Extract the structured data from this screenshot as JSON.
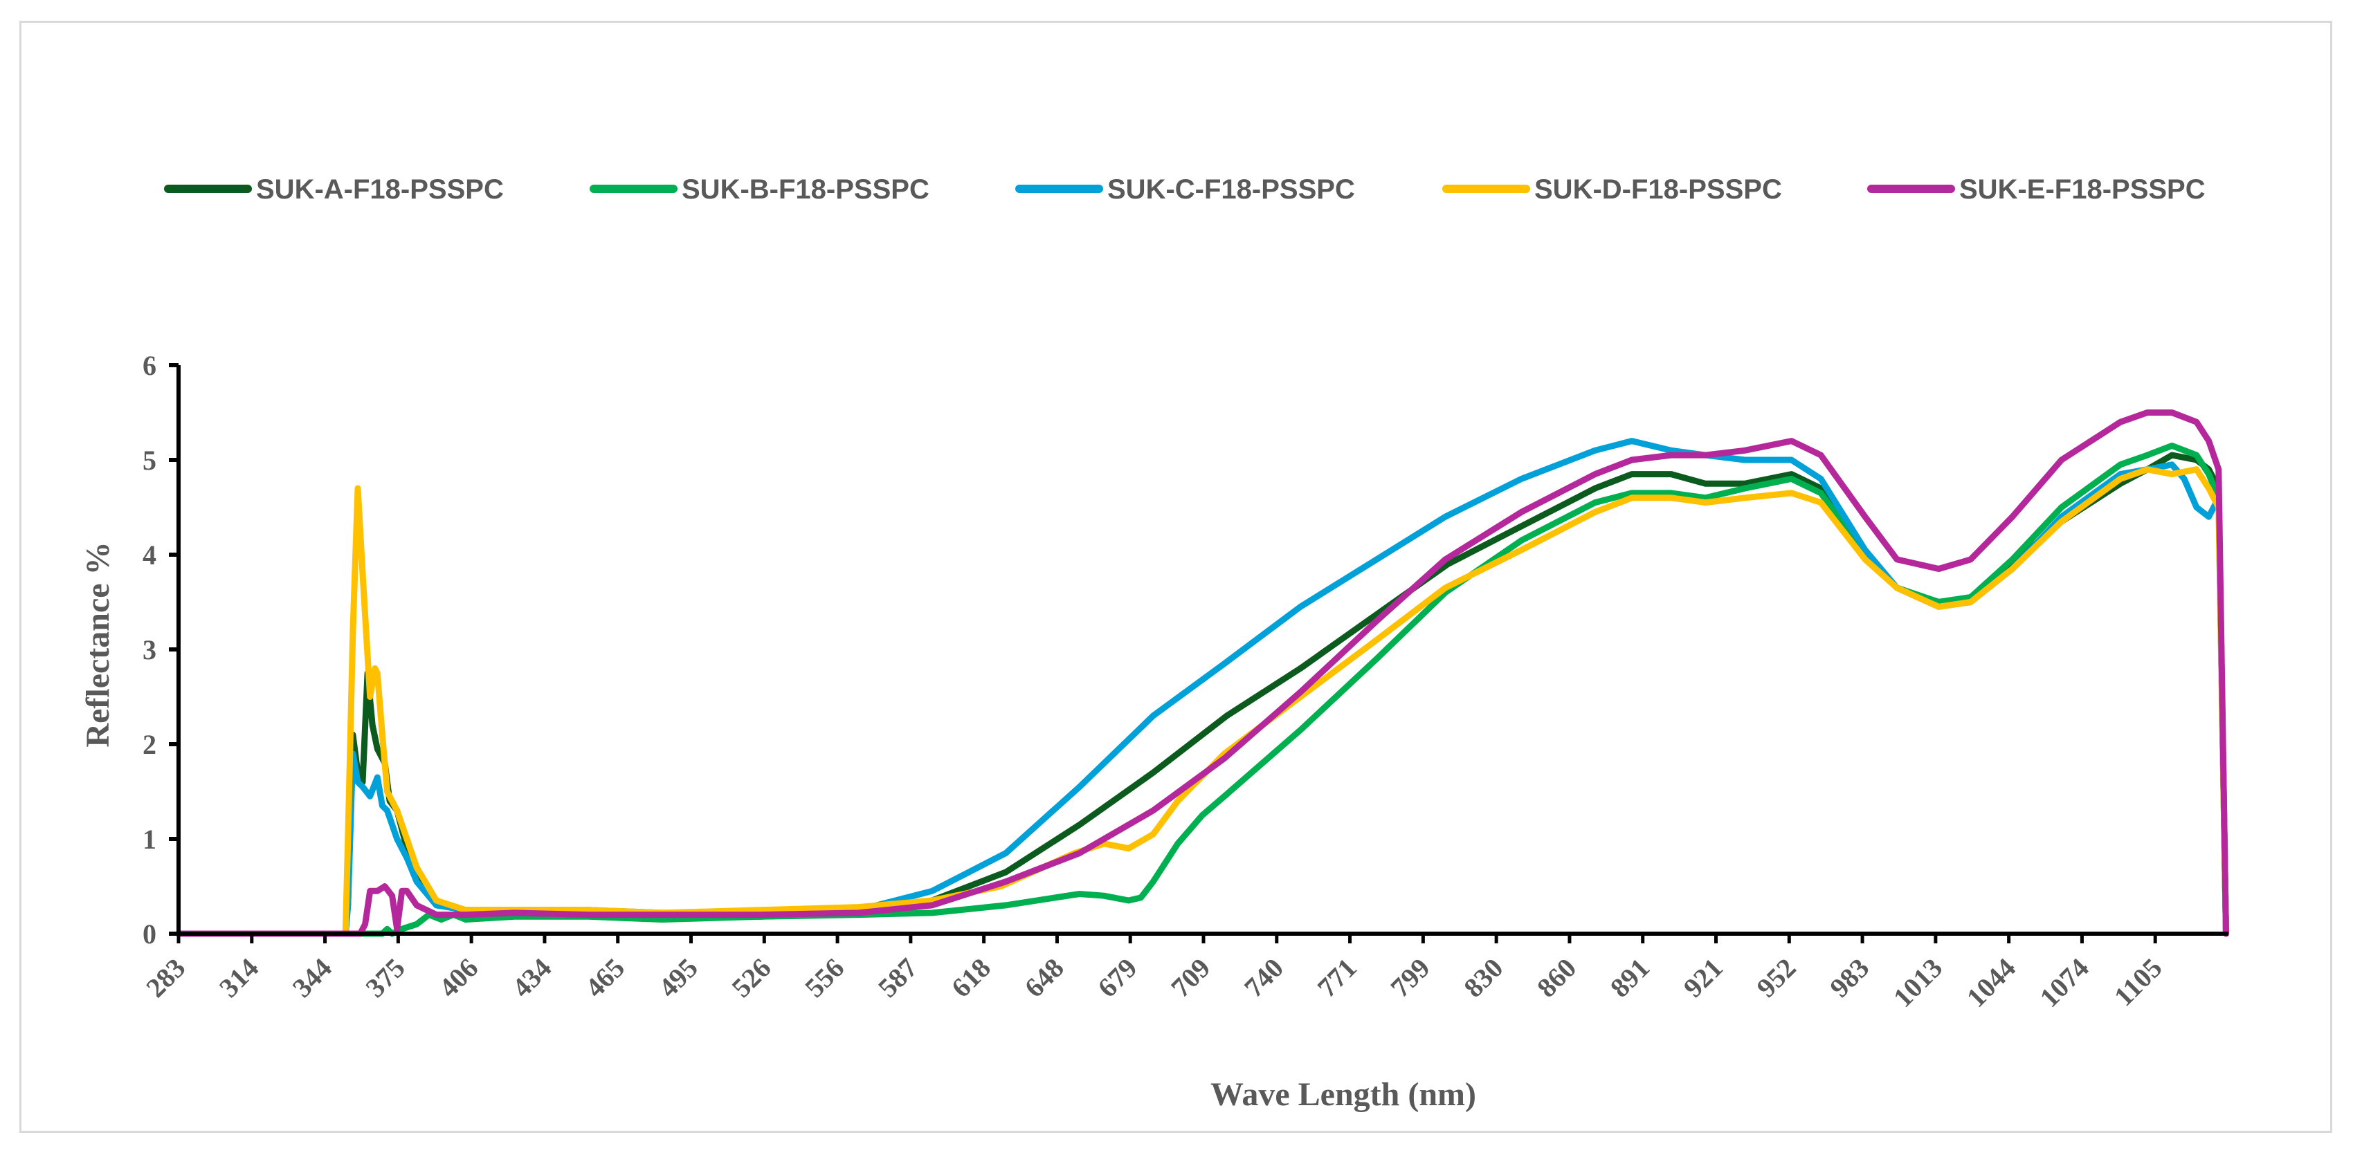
{
  "chart_data": {
    "type": "line",
    "title": "",
    "xlabel": "Wave Length (nm)",
    "ylabel": "Reflectance %",
    "xlim": [
      283,
      1118
    ],
    "ylim": [
      0,
      6
    ],
    "x_ticks": [
      "283",
      "314",
      "344",
      "375",
      "406",
      "434",
      "465",
      "495",
      "526",
      "556",
      "587",
      "618",
      "648",
      "679",
      "709",
      "740",
      "771",
      "799",
      "830",
      "860",
      "891",
      "921",
      "952",
      "983",
      "1013",
      "1044",
      "1074",
      "1105"
    ],
    "y_ticks": [
      "0",
      "1",
      "2",
      "3",
      "4",
      "5",
      "6"
    ],
    "legend_position": "top",
    "grid": false,
    "series": [
      {
        "name": "SUK-A-F18-PSSPC",
        "color": "#0b5a1e",
        "points": [
          [
            283,
            0
          ],
          [
            350,
            0
          ],
          [
            351,
            0
          ],
          [
            352,
            0.3
          ],
          [
            354,
            2.1
          ],
          [
            356,
            1.7
          ],
          [
            358,
            1.6
          ],
          [
            360,
            2.75
          ],
          [
            362,
            2.2
          ],
          [
            364,
            1.95
          ],
          [
            367,
            1.8
          ],
          [
            369,
            1.4
          ],
          [
            372,
            1.3
          ],
          [
            376,
            0.9
          ],
          [
            380,
            0.6
          ],
          [
            388,
            0.35
          ],
          [
            400,
            0.22
          ],
          [
            420,
            0.2
          ],
          [
            450,
            0.2
          ],
          [
            480,
            0.18
          ],
          [
            520,
            0.18
          ],
          [
            560,
            0.22
          ],
          [
            590,
            0.35
          ],
          [
            620,
            0.65
          ],
          [
            650,
            1.15
          ],
          [
            680,
            1.7
          ],
          [
            710,
            2.3
          ],
          [
            740,
            2.8
          ],
          [
            770,
            3.35
          ],
          [
            800,
            3.9
          ],
          [
            830,
            4.3
          ],
          [
            860,
            4.7
          ],
          [
            875,
            4.85
          ],
          [
            891,
            4.85
          ],
          [
            905,
            4.75
          ],
          [
            921,
            4.75
          ],
          [
            940,
            4.85
          ],
          [
            952,
            4.7
          ],
          [
            970,
            4.0
          ],
          [
            983,
            3.65
          ],
          [
            1000,
            3.5
          ],
          [
            1013,
            3.55
          ],
          [
            1030,
            3.9
          ],
          [
            1050,
            4.35
          ],
          [
            1074,
            4.75
          ],
          [
            1085,
            4.9
          ],
          [
            1095,
            5.05
          ],
          [
            1105,
            5.0
          ],
          [
            1110,
            4.9
          ],
          [
            1114,
            4.7
          ],
          [
            1117,
            0
          ]
        ]
      },
      {
        "name": "SUK-B-F18-PSSPC",
        "color": "#00b050",
        "points": [
          [
            283,
            0
          ],
          [
            366,
            0
          ],
          [
            368,
            0.05
          ],
          [
            370,
            0
          ],
          [
            374,
            0.05
          ],
          [
            380,
            0.1
          ],
          [
            385,
            0.2
          ],
          [
            390,
            0.15
          ],
          [
            395,
            0.2
          ],
          [
            400,
            0.15
          ],
          [
            420,
            0.18
          ],
          [
            450,
            0.18
          ],
          [
            480,
            0.15
          ],
          [
            520,
            0.18
          ],
          [
            560,
            0.2
          ],
          [
            590,
            0.22
          ],
          [
            620,
            0.3
          ],
          [
            640,
            0.38
          ],
          [
            650,
            0.42
          ],
          [
            660,
            0.4
          ],
          [
            670,
            0.35
          ],
          [
            675,
            0.38
          ],
          [
            680,
            0.55
          ],
          [
            690,
            0.95
          ],
          [
            700,
            1.25
          ],
          [
            709,
            1.45
          ],
          [
            740,
            2.15
          ],
          [
            771,
            2.9
          ],
          [
            799,
            3.6
          ],
          [
            830,
            4.15
          ],
          [
            860,
            4.55
          ],
          [
            875,
            4.65
          ],
          [
            891,
            4.65
          ],
          [
            905,
            4.6
          ],
          [
            921,
            4.7
          ],
          [
            940,
            4.8
          ],
          [
            952,
            4.65
          ],
          [
            970,
            4.0
          ],
          [
            983,
            3.65
          ],
          [
            1000,
            3.5
          ],
          [
            1013,
            3.55
          ],
          [
            1030,
            3.95
          ],
          [
            1050,
            4.5
          ],
          [
            1074,
            4.95
          ],
          [
            1085,
            5.05
          ],
          [
            1095,
            5.15
          ],
          [
            1105,
            5.05
          ],
          [
            1110,
            4.85
          ],
          [
            1114,
            4.6
          ],
          [
            1117,
            0
          ]
        ]
      },
      {
        "name": "SUK-C-F18-PSSPC",
        "color": "#00a0d8",
        "points": [
          [
            283,
            0
          ],
          [
            350,
            0
          ],
          [
            351,
            0
          ],
          [
            352,
            0.3
          ],
          [
            354,
            1.9
          ],
          [
            356,
            1.6
          ],
          [
            358,
            1.55
          ],
          [
            361,
            1.45
          ],
          [
            364,
            1.65
          ],
          [
            366,
            1.35
          ],
          [
            368,
            1.3
          ],
          [
            372,
            1.0
          ],
          [
            376,
            0.8
          ],
          [
            380,
            0.55
          ],
          [
            388,
            0.3
          ],
          [
            400,
            0.25
          ],
          [
            420,
            0.25
          ],
          [
            450,
            0.25
          ],
          [
            480,
            0.22
          ],
          [
            520,
            0.22
          ],
          [
            560,
            0.25
          ],
          [
            590,
            0.45
          ],
          [
            620,
            0.85
          ],
          [
            650,
            1.55
          ],
          [
            680,
            2.3
          ],
          [
            709,
            2.85
          ],
          [
            740,
            3.45
          ],
          [
            771,
            3.95
          ],
          [
            799,
            4.4
          ],
          [
            830,
            4.8
          ],
          [
            860,
            5.1
          ],
          [
            875,
            5.2
          ],
          [
            891,
            5.1
          ],
          [
            905,
            5.05
          ],
          [
            921,
            5.0
          ],
          [
            940,
            5.0
          ],
          [
            952,
            4.8
          ],
          [
            970,
            4.05
          ],
          [
            983,
            3.65
          ],
          [
            1000,
            3.45
          ],
          [
            1013,
            3.5
          ],
          [
            1030,
            3.85
          ],
          [
            1050,
            4.4
          ],
          [
            1074,
            4.85
          ],
          [
            1085,
            4.9
          ],
          [
            1095,
            4.95
          ],
          [
            1100,
            4.8
          ],
          [
            1105,
            4.5
          ],
          [
            1110,
            4.4
          ],
          [
            1114,
            4.6
          ],
          [
            1117,
            0
          ]
        ]
      },
      {
        "name": "SUK-D-F18-PSSPC",
        "color": "#ffc000",
        "points": [
          [
            283,
            0
          ],
          [
            350,
            0
          ],
          [
            351,
            0
          ],
          [
            352,
            1.0
          ],
          [
            354,
            3.2
          ],
          [
            356,
            4.7
          ],
          [
            358,
            3.8
          ],
          [
            361,
            2.5
          ],
          [
            363,
            2.8
          ],
          [
            364,
            2.75
          ],
          [
            366,
            2.1
          ],
          [
            368,
            1.5
          ],
          [
            372,
            1.3
          ],
          [
            376,
            1.0
          ],
          [
            380,
            0.7
          ],
          [
            388,
            0.35
          ],
          [
            400,
            0.25
          ],
          [
            420,
            0.25
          ],
          [
            450,
            0.25
          ],
          [
            480,
            0.22
          ],
          [
            520,
            0.25
          ],
          [
            560,
            0.28
          ],
          [
            590,
            0.35
          ],
          [
            618,
            0.5
          ],
          [
            648,
            0.85
          ],
          [
            660,
            0.95
          ],
          [
            670,
            0.9
          ],
          [
            680,
            1.05
          ],
          [
            690,
            1.4
          ],
          [
            709,
            1.9
          ],
          [
            740,
            2.5
          ],
          [
            771,
            3.1
          ],
          [
            799,
            3.65
          ],
          [
            830,
            4.05
          ],
          [
            860,
            4.45
          ],
          [
            875,
            4.6
          ],
          [
            891,
            4.6
          ],
          [
            905,
            4.55
          ],
          [
            921,
            4.6
          ],
          [
            940,
            4.65
          ],
          [
            952,
            4.55
          ],
          [
            970,
            3.95
          ],
          [
            983,
            3.65
          ],
          [
            1000,
            3.45
          ],
          [
            1013,
            3.5
          ],
          [
            1030,
            3.85
          ],
          [
            1050,
            4.35
          ],
          [
            1074,
            4.8
          ],
          [
            1085,
            4.9
          ],
          [
            1095,
            4.85
          ],
          [
            1105,
            4.9
          ],
          [
            1110,
            4.7
          ],
          [
            1114,
            4.5
          ],
          [
            1117,
            0
          ]
        ]
      },
      {
        "name": "SUK-E-F18-PSSPC",
        "color": "#b5289b",
        "points": [
          [
            283,
            0
          ],
          [
            357,
            0
          ],
          [
            359,
            0.1
          ],
          [
            361,
            0.45
          ],
          [
            364,
            0.45
          ],
          [
            367,
            0.5
          ],
          [
            370,
            0.4
          ],
          [
            372,
            0.05
          ],
          [
            374,
            0.45
          ],
          [
            376,
            0.45
          ],
          [
            380,
            0.3
          ],
          [
            388,
            0.2
          ],
          [
            400,
            0.2
          ],
          [
            420,
            0.22
          ],
          [
            450,
            0.2
          ],
          [
            480,
            0.2
          ],
          [
            520,
            0.2
          ],
          [
            560,
            0.22
          ],
          [
            590,
            0.3
          ],
          [
            620,
            0.55
          ],
          [
            650,
            0.85
          ],
          [
            680,
            1.3
          ],
          [
            709,
            1.85
          ],
          [
            740,
            2.55
          ],
          [
            771,
            3.3
          ],
          [
            799,
            3.95
          ],
          [
            830,
            4.45
          ],
          [
            860,
            4.85
          ],
          [
            875,
            5.0
          ],
          [
            891,
            5.05
          ],
          [
            905,
            5.05
          ],
          [
            921,
            5.1
          ],
          [
            940,
            5.2
          ],
          [
            952,
            5.05
          ],
          [
            970,
            4.4
          ],
          [
            983,
            3.95
          ],
          [
            1000,
            3.85
          ],
          [
            1013,
            3.95
          ],
          [
            1030,
            4.4
          ],
          [
            1050,
            5.0
          ],
          [
            1074,
            5.4
          ],
          [
            1085,
            5.5
          ],
          [
            1095,
            5.5
          ],
          [
            1105,
            5.4
          ],
          [
            1110,
            5.2
          ],
          [
            1114,
            4.9
          ],
          [
            1117,
            0
          ]
        ]
      }
    ]
  }
}
